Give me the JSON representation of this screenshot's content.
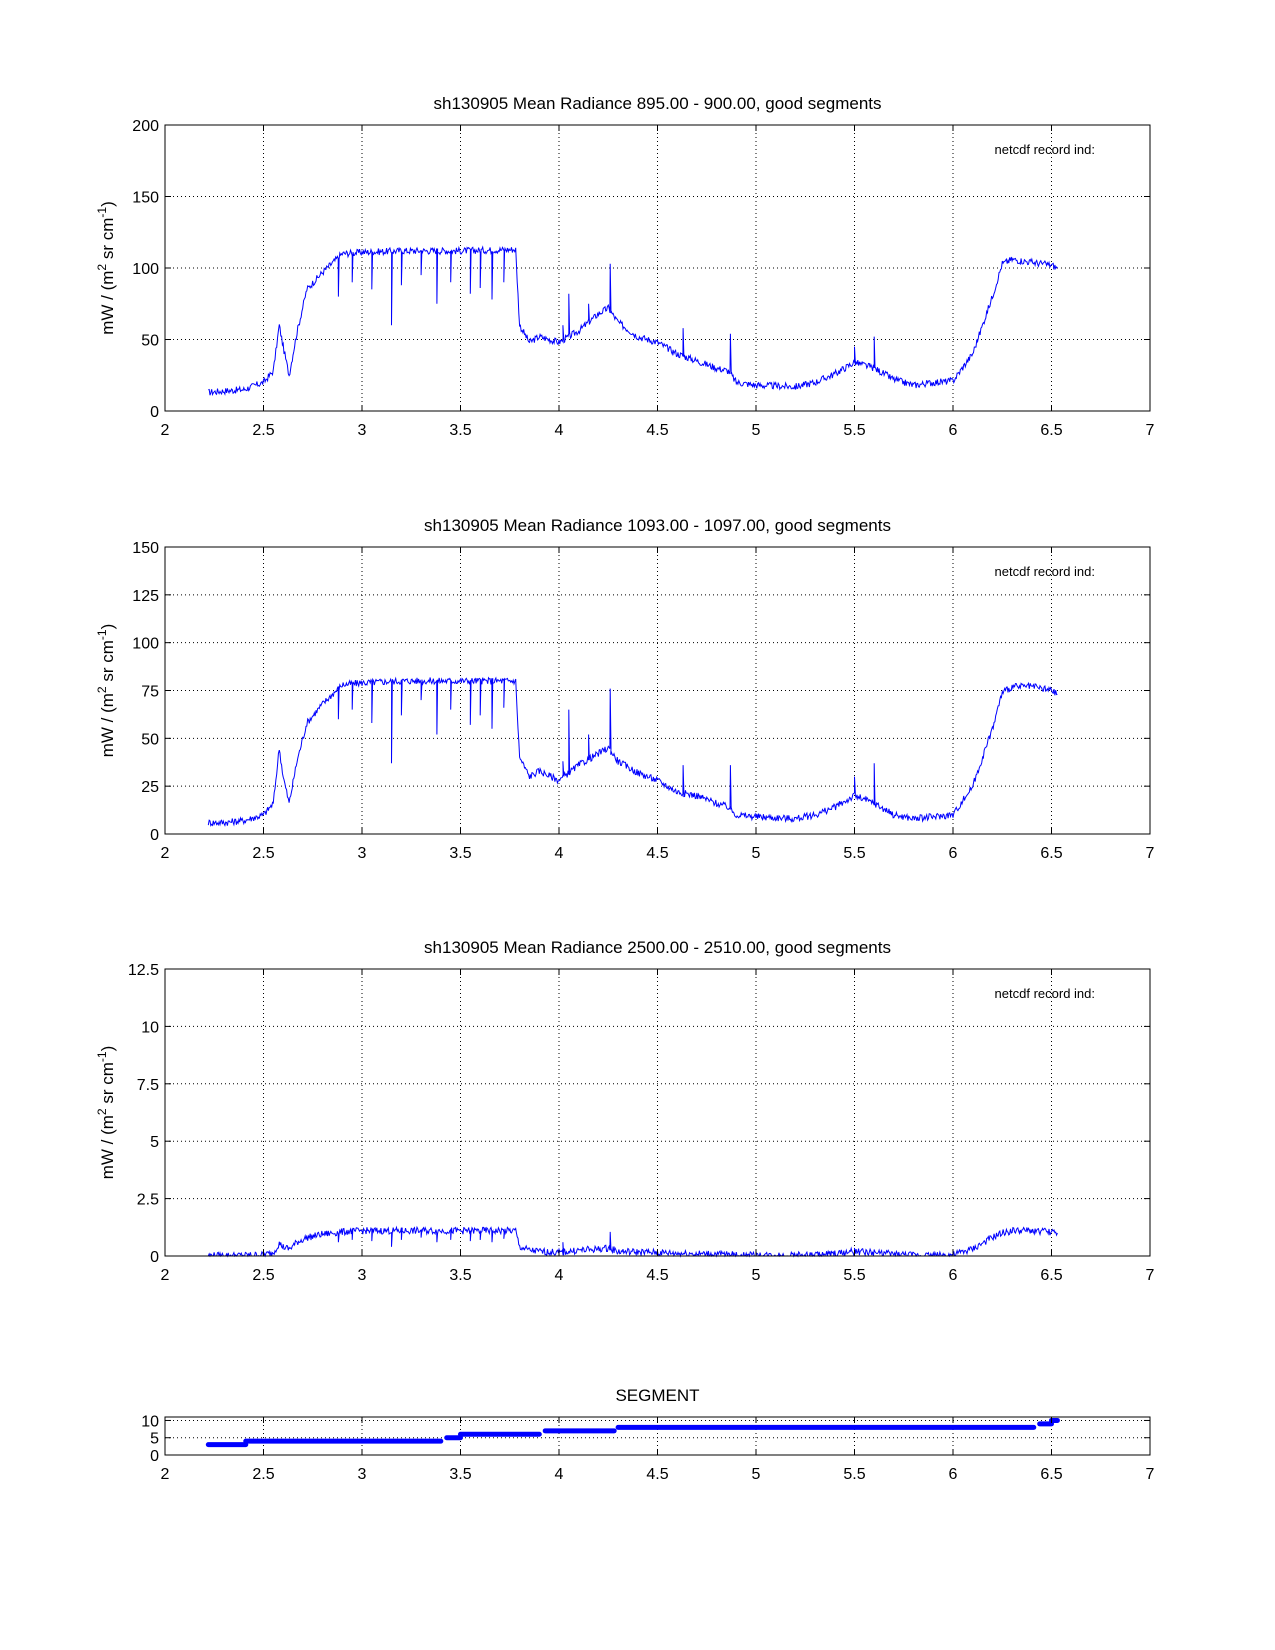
{
  "chart_data": [
    {
      "type": "line",
      "title": "sh130905 Mean Radiance 895.00 - 900.00, good segments",
      "ylabel": "mW / (m2 sr cm-1)",
      "ylabel_parts": [
        "mW / (m",
        "2",
        " sr cm",
        "-1",
        ")"
      ],
      "annotation": "netcdf record ind:",
      "xlim": [
        2,
        7
      ],
      "ylim": [
        0,
        200
      ],
      "xticks": [
        2,
        2.5,
        3,
        3.5,
        4,
        4.5,
        5,
        5.5,
        6,
        6.5,
        7
      ],
      "xtick_labels": [
        "2",
        "2.5",
        "3",
        "3.5",
        "4",
        "4.5",
        "5",
        "5.5",
        "6",
        "6.5",
        "7"
      ],
      "yticks": [
        0,
        50,
        100,
        150,
        200
      ],
      "ytick_labels": [
        "0",
        "50",
        "100",
        "150",
        "200"
      ],
      "grid": true,
      "series": [
        {
          "name": "mean radiance",
          "color": "#0000ff",
          "x": [
            2.22,
            2.3,
            2.4,
            2.5,
            2.55,
            2.58,
            2.6,
            2.63,
            2.67,
            2.72,
            2.8,
            2.9,
            3.0,
            3.2,
            3.5,
            3.78,
            3.8,
            3.85,
            3.9,
            4.0,
            4.1,
            4.2,
            4.25,
            4.3,
            4.4,
            4.5,
            4.6,
            4.7,
            4.8,
            4.86,
            4.9,
            5.0,
            5.2,
            5.3,
            5.4,
            5.5,
            5.6,
            5.7,
            5.8,
            5.9,
            6.0,
            6.1,
            6.2,
            6.25,
            6.3,
            6.4,
            6.5,
            6.53
          ],
          "y": [
            13,
            14,
            15,
            20,
            28,
            60,
            45,
            25,
            55,
            85,
            97,
            110,
            111,
            112,
            112,
            113,
            60,
            48,
            52,
            48,
            56,
            68,
            72,
            62,
            52,
            48,
            40,
            35,
            30,
            28,
            20,
            18,
            17,
            20,
            26,
            34,
            30,
            22,
            18,
            20,
            21,
            40,
            80,
            103,
            106,
            104,
            102,
            100
          ],
          "spikes": [
            [
              2.88,
              80
            ],
            [
              2.95,
              90
            ],
            [
              3.05,
              85
            ],
            [
              3.15,
              60
            ],
            [
              3.2,
              88
            ],
            [
              3.3,
              95
            ],
            [
              3.38,
              75
            ],
            [
              3.45,
              90
            ],
            [
              3.55,
              82
            ],
            [
              3.6,
              86
            ],
            [
              3.66,
              78
            ],
            [
              3.72,
              90
            ],
            [
              4.02,
              60
            ],
            [
              4.05,
              82
            ],
            [
              4.15,
              75
            ],
            [
              4.26,
              103
            ],
            [
              4.63,
              58
            ],
            [
              4.87,
              54
            ],
            [
              5.5,
              45
            ],
            [
              5.6,
              52
            ]
          ]
        }
      ]
    },
    {
      "type": "line",
      "title": "sh130905 Mean Radiance 1093.00 - 1097.00, good segments",
      "ylabel": "mW / (m2 sr cm-1)",
      "ylabel_parts": [
        "mW / (m",
        "2",
        " sr cm",
        "-1",
        ")"
      ],
      "annotation": "netcdf record ind:",
      "xlim": [
        2,
        7
      ],
      "ylim": [
        0,
        150
      ],
      "xticks": [
        2,
        2.5,
        3,
        3.5,
        4,
        4.5,
        5,
        5.5,
        6,
        6.5,
        7
      ],
      "xtick_labels": [
        "2",
        "2.5",
        "3",
        "3.5",
        "4",
        "4.5",
        "5",
        "5.5",
        "6",
        "6.5",
        "7"
      ],
      "yticks": [
        0,
        25,
        50,
        75,
        100,
        125,
        150
      ],
      "ytick_labels": [
        "0",
        "25",
        "50",
        "75",
        "100",
        "125",
        "150"
      ],
      "grid": true,
      "series": [
        {
          "name": "mean radiance",
          "color": "#0000ff",
          "x": [
            2.22,
            2.3,
            2.4,
            2.5,
            2.55,
            2.58,
            2.6,
            2.63,
            2.67,
            2.72,
            2.8,
            2.9,
            3.0,
            3.2,
            3.5,
            3.78,
            3.8,
            3.85,
            3.9,
            4.0,
            4.1,
            4.2,
            4.25,
            4.3,
            4.4,
            4.5,
            4.6,
            4.7,
            4.8,
            4.86,
            4.9,
            5.0,
            5.2,
            5.3,
            5.4,
            5.5,
            5.6,
            5.7,
            5.8,
            5.9,
            6.0,
            6.1,
            6.2,
            6.25,
            6.3,
            6.4,
            6.5,
            6.53
          ],
          "y": [
            6,
            6,
            7,
            10,
            16,
            45,
            30,
            16,
            38,
            58,
            68,
            78,
            79,
            80,
            80,
            80,
            40,
            30,
            33,
            28,
            36,
            42,
            45,
            38,
            32,
            28,
            22,
            20,
            16,
            14,
            10,
            9,
            8,
            10,
            14,
            20,
            16,
            10,
            8,
            9,
            10,
            25,
            55,
            74,
            77,
            77,
            75,
            73
          ],
          "spikes": [
            [
              2.88,
              60
            ],
            [
              2.95,
              65
            ],
            [
              3.05,
              58
            ],
            [
              3.15,
              37
            ],
            [
              3.2,
              62
            ],
            [
              3.3,
              70
            ],
            [
              3.38,
              52
            ],
            [
              3.45,
              65
            ],
            [
              3.55,
              57
            ],
            [
              3.6,
              62
            ],
            [
              3.66,
              55
            ],
            [
              3.72,
              66
            ],
            [
              4.02,
              38
            ],
            [
              4.05,
              65
            ],
            [
              4.15,
              52
            ],
            [
              4.26,
              76
            ],
            [
              4.63,
              36
            ],
            [
              4.87,
              36
            ],
            [
              5.5,
              30
            ],
            [
              5.6,
              37
            ]
          ]
        }
      ]
    },
    {
      "type": "line",
      "title": "sh130905 Mean Radiance 2500.00 - 2510.00, good segments",
      "ylabel": "mW / (m2 sr cm-1)",
      "ylabel_parts": [
        "mW / (m",
        "2",
        " sr cm",
        "-1",
        ")"
      ],
      "annotation": "netcdf record ind:",
      "xlim": [
        2,
        7
      ],
      "ylim": [
        0,
        12.5
      ],
      "xticks": [
        2,
        2.5,
        3,
        3.5,
        4,
        4.5,
        5,
        5.5,
        6,
        6.5,
        7
      ],
      "xtick_labels": [
        "2",
        "2.5",
        "3",
        "3.5",
        "4",
        "4.5",
        "5",
        "5.5",
        "6",
        "6.5",
        "7"
      ],
      "yticks": [
        0,
        2.5,
        5,
        7.5,
        10,
        12.5
      ],
      "ytick_labels": [
        "0",
        "2.5",
        "5",
        "7.5",
        "10",
        "12.5"
      ],
      "grid": true,
      "series": [
        {
          "name": "mean radiance",
          "color": "#0000ff",
          "x": [
            2.22,
            2.3,
            2.4,
            2.5,
            2.55,
            2.58,
            2.6,
            2.63,
            2.67,
            2.72,
            2.8,
            2.9,
            3.0,
            3.2,
            3.5,
            3.78,
            3.8,
            3.85,
            3.9,
            4.0,
            4.1,
            4.2,
            4.25,
            4.3,
            4.4,
            4.5,
            4.6,
            4.7,
            4.8,
            4.86,
            4.9,
            5.0,
            5.2,
            5.3,
            5.4,
            5.5,
            5.6,
            5.7,
            5.8,
            5.9,
            6.0,
            6.1,
            6.2,
            6.25,
            6.3,
            6.4,
            6.5,
            6.53
          ],
          "y": [
            0.02,
            0.02,
            0.03,
            0.05,
            0.15,
            0.55,
            0.4,
            0.3,
            0.6,
            0.8,
            0.95,
            1.05,
            1.1,
            1.1,
            1.1,
            1.1,
            0.4,
            0.25,
            0.2,
            0.15,
            0.25,
            0.3,
            0.35,
            0.2,
            0.18,
            0.15,
            0.12,
            0.1,
            0.08,
            0.07,
            0.04,
            0.03,
            0.03,
            0.05,
            0.1,
            0.2,
            0.15,
            0.08,
            0.04,
            0.04,
            0.05,
            0.3,
            0.8,
            1.0,
            1.1,
            1.1,
            1.05,
            1.0
          ],
          "spikes": [
            [
              2.88,
              0.6
            ],
            [
              2.95,
              0.7
            ],
            [
              3.05,
              0.65
            ],
            [
              3.15,
              0.4
            ],
            [
              3.2,
              0.7
            ],
            [
              3.3,
              0.8
            ],
            [
              3.38,
              0.6
            ],
            [
              3.45,
              0.7
            ],
            [
              3.55,
              0.65
            ],
            [
              3.6,
              0.7
            ],
            [
              3.66,
              0.6
            ],
            [
              3.72,
              0.75
            ],
            [
              4.02,
              0.6
            ],
            [
              4.05,
              0.2
            ],
            [
              4.26,
              1.05
            ],
            [
              5.5,
              0.35
            ]
          ]
        }
      ]
    },
    {
      "type": "scatter",
      "title": "SEGMENT",
      "xlim": [
        2,
        7
      ],
      "ylim": [
        0,
        11
      ],
      "xticks": [
        2,
        2.5,
        3,
        3.5,
        4,
        4.5,
        5,
        5.5,
        6,
        6.5,
        7
      ],
      "xtick_labels": [
        "2",
        "2.5",
        "3",
        "3.5",
        "4",
        "4.5",
        "5",
        "5.5",
        "6",
        "6.5",
        "7"
      ],
      "yticks": [
        0,
        5,
        10
      ],
      "ytick_labels": [
        "0",
        "5",
        "10"
      ],
      "grid": true,
      "segments": [
        {
          "x0": 2.22,
          "x1": 2.41,
          "y": 3
        },
        {
          "x0": 2.41,
          "x1": 3.4,
          "y": 4
        },
        {
          "x0": 3.43,
          "x1": 3.5,
          "y": 5
        },
        {
          "x0": 3.5,
          "x1": 3.9,
          "y": 6
        },
        {
          "x0": 3.93,
          "x1": 4.28,
          "y": 7
        },
        {
          "x0": 4.3,
          "x1": 6.41,
          "y": 8
        },
        {
          "x0": 6.44,
          "x1": 6.5,
          "y": 9
        },
        {
          "x0": 6.5,
          "x1": 6.53,
          "y": 10
        }
      ]
    }
  ]
}
